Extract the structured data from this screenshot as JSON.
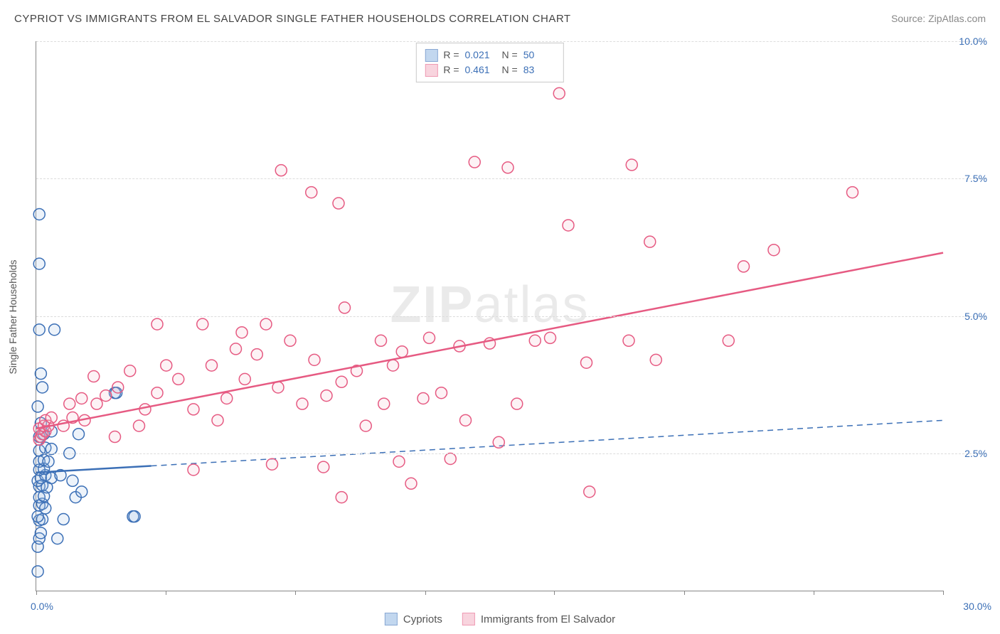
{
  "title": "CYPRIOT VS IMMIGRANTS FROM EL SALVADOR SINGLE FATHER HOUSEHOLDS CORRELATION CHART",
  "source": "Source: ZipAtlas.com",
  "ylabel": "Single Father Households",
  "watermark_a": "ZIP",
  "watermark_b": "atlas",
  "chart": {
    "type": "scatter",
    "xlim": [
      0,
      30
    ],
    "ylim": [
      0,
      10
    ],
    "xticks": [
      0,
      4.29,
      8.57,
      12.86,
      17.14,
      21.43,
      25.71,
      30
    ],
    "xtick_labels": {
      "0": "0.0%",
      "30": "30.0%"
    },
    "yticks": [
      2.5,
      5.0,
      7.5,
      10.0
    ],
    "ytick_labels": [
      "2.5%",
      "5.0%",
      "7.5%",
      "10.0%"
    ],
    "grid_color": "#dcdcdc",
    "axis_color": "#888888",
    "background_color": "#ffffff",
    "tick_label_color": "#3b6fb6",
    "marker_radius": 8,
    "marker_stroke_width": 1.5,
    "marker_fill_opacity": 0.18
  },
  "series": [
    {
      "key": "cypriots",
      "label": "Cypriots",
      "color_stroke": "#3b6fb6",
      "color_fill": "#9bbde6",
      "R": "0.021",
      "N": "50",
      "trend": {
        "x1": 0,
        "y1": 2.15,
        "x2": 30,
        "y2": 3.1,
        "solid_until_x": 3.8
      },
      "points": [
        [
          0.05,
          0.35
        ],
        [
          0.05,
          0.8
        ],
        [
          0.1,
          0.95
        ],
        [
          0.15,
          1.05
        ],
        [
          0.1,
          1.28
        ],
        [
          0.2,
          1.3
        ],
        [
          0.05,
          1.35
        ],
        [
          0.1,
          1.55
        ],
        [
          0.2,
          1.58
        ],
        [
          0.3,
          1.5
        ],
        [
          0.1,
          1.7
        ],
        [
          0.25,
          1.72
        ],
        [
          0.1,
          1.9
        ],
        [
          0.2,
          1.92
        ],
        [
          0.35,
          1.88
        ],
        [
          0.05,
          2.0
        ],
        [
          0.15,
          2.05
        ],
        [
          0.3,
          2.1
        ],
        [
          0.5,
          2.05
        ],
        [
          0.1,
          2.2
        ],
        [
          0.25,
          2.22
        ],
        [
          0.1,
          2.35
        ],
        [
          0.25,
          2.38
        ],
        [
          0.4,
          2.35
        ],
        [
          0.1,
          2.55
        ],
        [
          0.3,
          2.6
        ],
        [
          0.5,
          2.58
        ],
        [
          0.1,
          2.8
        ],
        [
          0.25,
          2.85
        ],
        [
          0.5,
          2.9
        ],
        [
          0.15,
          3.05
        ],
        [
          0.05,
          3.35
        ],
        [
          0.2,
          3.7
        ],
        [
          0.15,
          3.95
        ],
        [
          0.1,
          4.75
        ],
        [
          0.6,
          4.75
        ],
        [
          0.1,
          5.95
        ],
        [
          0.1,
          6.85
        ],
        [
          0.7,
          0.95
        ],
        [
          0.9,
          1.3
        ],
        [
          1.3,
          1.7
        ],
        [
          0.8,
          2.1
        ],
        [
          1.2,
          2.0
        ],
        [
          1.5,
          1.8
        ],
        [
          1.1,
          2.5
        ],
        [
          1.4,
          2.85
        ],
        [
          2.6,
          3.6
        ],
        [
          2.65,
          3.6
        ],
        [
          3.2,
          1.35
        ],
        [
          3.25,
          1.35
        ]
      ]
    },
    {
      "key": "el_salvador",
      "label": "Immigrants from El Salvador",
      "color_stroke": "#e65a82",
      "color_fill": "#f5b8c9",
      "R": "0.461",
      "N": "83",
      "trend": {
        "x1": 0,
        "y1": 2.95,
        "x2": 30,
        "y2": 6.15,
        "solid_until_x": 30
      },
      "points": [
        [
          0.1,
          2.75
        ],
        [
          0.15,
          2.8
        ],
        [
          0.2,
          2.85
        ],
        [
          0.3,
          2.9
        ],
        [
          0.1,
          2.95
        ],
        [
          0.25,
          3.0
        ],
        [
          0.4,
          3.0
        ],
        [
          0.3,
          3.1
        ],
        [
          0.5,
          3.15
        ],
        [
          0.9,
          3.0
        ],
        [
          1.2,
          3.15
        ],
        [
          1.6,
          3.1
        ],
        [
          1.1,
          3.4
        ],
        [
          1.5,
          3.5
        ],
        [
          2.0,
          3.4
        ],
        [
          2.3,
          3.55
        ],
        [
          2.7,
          3.7
        ],
        [
          1.9,
          3.9
        ],
        [
          2.6,
          2.8
        ],
        [
          3.1,
          4.0
        ],
        [
          3.6,
          3.3
        ],
        [
          4.0,
          3.6
        ],
        [
          4.3,
          4.1
        ],
        [
          4.7,
          3.85
        ],
        [
          4.0,
          4.85
        ],
        [
          5.2,
          3.3
        ],
        [
          5.5,
          4.85
        ],
        [
          5.8,
          4.1
        ],
        [
          6.3,
          3.5
        ],
        [
          6.6,
          4.4
        ],
        [
          5.2,
          2.2
        ],
        [
          6.9,
          3.85
        ],
        [
          7.3,
          4.3
        ],
        [
          7.6,
          4.85
        ],
        [
          6.8,
          4.7
        ],
        [
          8.0,
          3.7
        ],
        [
          8.4,
          4.55
        ],
        [
          7.8,
          2.3
        ],
        [
          8.8,
          3.4
        ],
        [
          8.1,
          7.65
        ],
        [
          9.2,
          4.2
        ],
        [
          9.1,
          7.25
        ],
        [
          9.6,
          3.55
        ],
        [
          9.5,
          2.25
        ],
        [
          10.0,
          7.05
        ],
        [
          10.1,
          3.8
        ],
        [
          10.6,
          4.0
        ],
        [
          10.2,
          5.15
        ],
        [
          10.9,
          3.0
        ],
        [
          10.1,
          1.7
        ],
        [
          11.5,
          3.4
        ],
        [
          11.4,
          4.55
        ],
        [
          12.1,
          4.35
        ],
        [
          12.0,
          2.35
        ],
        [
          12.8,
          3.5
        ],
        [
          12.4,
          1.95
        ],
        [
          13.0,
          4.6
        ],
        [
          13.4,
          3.6
        ],
        [
          13.7,
          2.4
        ],
        [
          14.0,
          4.45
        ],
        [
          14.5,
          7.8
        ],
        [
          14.2,
          3.1
        ],
        [
          15.0,
          4.5
        ],
        [
          15.6,
          7.7
        ],
        [
          15.3,
          2.7
        ],
        [
          15.9,
          3.4
        ],
        [
          16.5,
          4.55
        ],
        [
          17.3,
          9.05
        ],
        [
          17.0,
          4.6
        ],
        [
          17.6,
          6.65
        ],
        [
          18.3,
          1.8
        ],
        [
          18.2,
          4.15
        ],
        [
          19.7,
          7.75
        ],
        [
          19.6,
          4.55
        ],
        [
          20.3,
          6.35
        ],
        [
          20.5,
          4.2
        ],
        [
          22.9,
          4.55
        ],
        [
          23.4,
          5.9
        ],
        [
          24.4,
          6.2
        ],
        [
          27.0,
          7.25
        ],
        [
          11.8,
          4.1
        ],
        [
          6.0,
          3.1
        ],
        [
          3.4,
          3.0
        ]
      ]
    }
  ],
  "colors": {
    "title": "#444444",
    "source": "#888888",
    "stat_label": "#555555",
    "stat_value": "#3b6fb6"
  }
}
